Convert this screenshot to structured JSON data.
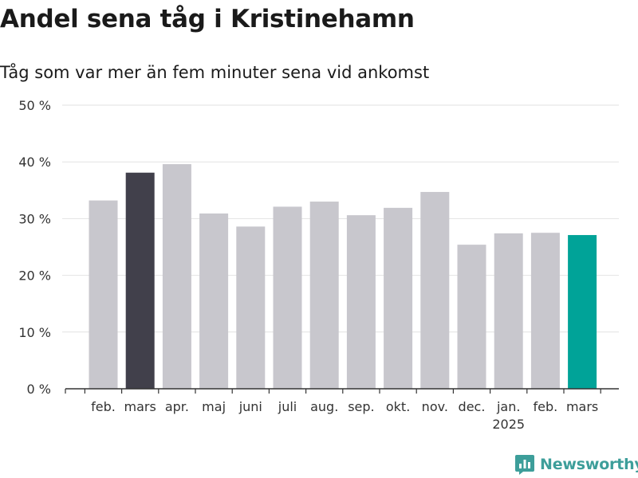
{
  "header": {
    "title": "Andel sena tåg i Kristinehamn",
    "subtitle": "Tåg som var mer än fem minuter sena vid ankomst"
  },
  "chart_data": {
    "type": "bar",
    "categories": [
      "feb.",
      "mars",
      "apr.",
      "maj",
      "juni",
      "juli",
      "aug.",
      "sep.",
      "okt.",
      "nov.",
      "dec.",
      "jan.",
      "feb.",
      "mars"
    ],
    "year_labels": [
      {
        "index": 11,
        "label": "2025"
      }
    ],
    "values": [
      33.2,
      38.1,
      39.6,
      30.9,
      28.6,
      32.1,
      33.0,
      30.6,
      31.9,
      34.7,
      25.4,
      27.4,
      27.5,
      27.1
    ],
    "value_unit": "%",
    "y_ticks": [
      "0 %",
      "10 %",
      "20 %",
      "30 %",
      "40 %",
      "50 %"
    ],
    "ylim": [
      0,
      50
    ],
    "grid": true,
    "colors": {
      "default": "#c8c7cd",
      "highlight_previous": "#41404b",
      "highlight_current": "#00a398"
    },
    "highlight": {
      "1": "highlight_previous",
      "13": "highlight_current"
    }
  },
  "brand": {
    "name": "Newsworthy",
    "icon": "newsworthy-logo-icon",
    "color": "#3d9e9a"
  }
}
